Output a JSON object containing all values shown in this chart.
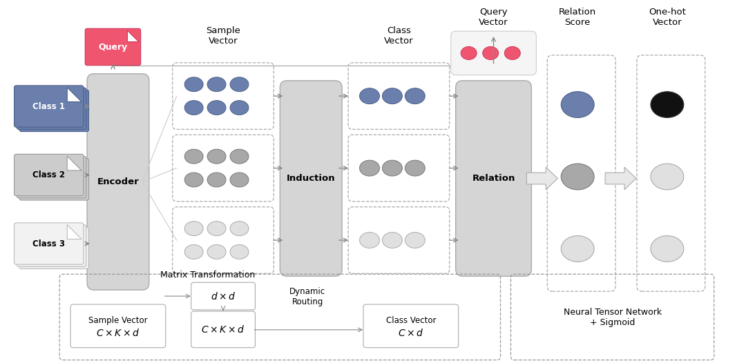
{
  "bg_color": "#ffffff",
  "encoder_label": "Encoder",
  "induction_label": "Induction",
  "relation_label": "Relation",
  "query_label": "Query",
  "class_labels": [
    "Class 1",
    "Class 2",
    "Class 3"
  ],
  "class1_color": "#6b7fad",
  "class1_edge": "#4a5f8a",
  "class2_color": "#cccccc",
  "class2_edge": "#999999",
  "class3_color": "#f2f2f2",
  "class3_edge": "#bbbbbb",
  "query_fill": "#f05570",
  "query_edge": "#cc3355",
  "blue_col": "#6b7fad",
  "blue_edge": "#4a5f8a",
  "gray_col": "#a8a8a8",
  "gray_edge": "#777777",
  "white_col": "#e0e0e0",
  "white_edge": "#aaaaaa",
  "pink_col": "#f05570",
  "pink_edge": "#cc3355",
  "black_col": "#111111",
  "block_fill": "#d5d5d5",
  "block_edge": "#aaaaaa",
  "sample_vector_label": "Sample\nVector",
  "class_vector_label": "Class\nVector",
  "query_vector_label": "Query\nVector",
  "relation_score_label": "Relation\nScore",
  "one_hot_label": "One-hot\nVector",
  "matrix_transform_label": "Matrix Transformation",
  "dynamic_routing_label": "Dynamic\nRouting",
  "ntn_label": "Neural Tensor Network\n+ Sigmoid",
  "fig_w": 10.8,
  "fig_h": 5.26
}
